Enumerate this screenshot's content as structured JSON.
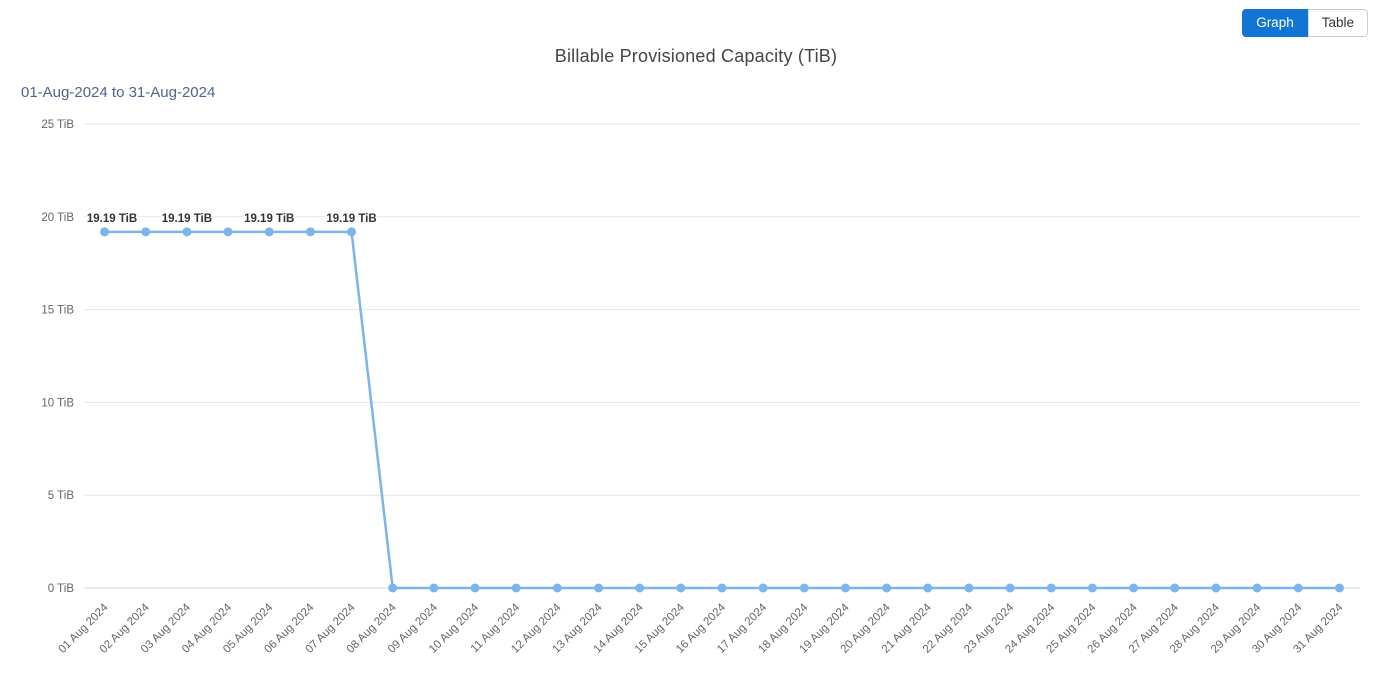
{
  "view_toggle": {
    "graph_label": "Graph",
    "table_label": "Table",
    "active": "Graph",
    "active_color": "#1274d3"
  },
  "chart_data": {
    "type": "line",
    "title": "Billable Provisioned Capacity (TiB)",
    "subtitle": "01-Aug-2024 to 31-Aug-2024",
    "unit": "TiB",
    "categories": [
      "01 Aug 2024",
      "02 Aug 2024",
      "03 Aug 2024",
      "04 Aug 2024",
      "05 Aug 2024",
      "06 Aug 2024",
      "07 Aug 2024",
      "08 Aug 2024",
      "09 Aug 2024",
      "10 Aug 2024",
      "11 Aug 2024",
      "12 Aug 2024",
      "13 Aug 2024",
      "14 Aug 2024",
      "15 Aug 2024",
      "16 Aug 2024",
      "17 Aug 2024",
      "18 Aug 2024",
      "19 Aug 2024",
      "20 Aug 2024",
      "21 Aug 2024",
      "22 Aug 2024",
      "23 Aug 2024",
      "24 Aug 2024",
      "25 Aug 2024",
      "26 Aug 2024",
      "27 Aug 2024",
      "28 Aug 2024",
      "29 Aug 2024",
      "30 Aug 2024",
      "31 Aug 2024"
    ],
    "values": [
      19.19,
      19.19,
      19.19,
      19.19,
      19.19,
      19.19,
      19.19,
      0,
      0,
      0,
      0,
      0,
      0,
      0,
      0,
      0,
      0,
      0,
      0,
      0,
      0,
      0,
      0,
      0,
      0,
      0,
      0,
      0,
      0,
      0,
      0
    ],
    "data_labels": [
      {
        "index": 0,
        "text": "19.19 TiB"
      },
      {
        "index": 2,
        "text": "19.19 TiB"
      },
      {
        "index": 4,
        "text": "19.19 TiB"
      },
      {
        "index": 6,
        "text": "19.19 TiB"
      }
    ],
    "ylim": [
      0,
      25
    ],
    "yticks": [
      {
        "value": 0,
        "label": "0 TiB"
      },
      {
        "value": 5,
        "label": "5 TiB"
      },
      {
        "value": 10,
        "label": "10 TiB"
      },
      {
        "value": 15,
        "label": "15 TiB"
      },
      {
        "value": 20,
        "label": "20 TiB"
      },
      {
        "value": 25,
        "label": "25 TiB"
      }
    ],
    "x_label_rotation": -45,
    "grid": "horizontal",
    "legend": "none",
    "colors": {
      "series": "#7cb5ec",
      "grid_line": "#e6e6e6",
      "x_axis_line": "#ccd6eb",
      "tick_label": "#666666",
      "data_label": "#333333"
    }
  }
}
